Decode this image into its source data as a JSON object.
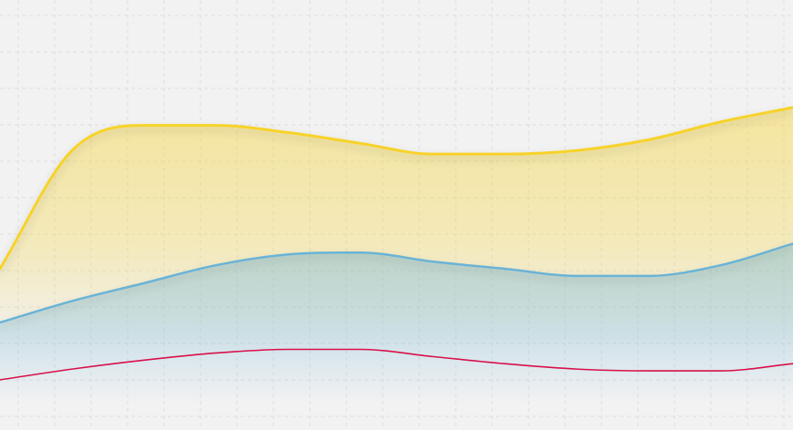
{
  "chart_data": {
    "type": "area",
    "title": "",
    "xlabel": "",
    "ylabel": "",
    "grid": true,
    "legend": "none",
    "xlim": [
      0,
      11
    ],
    "ylim": [
      0,
      12
    ],
    "x": [
      0,
      1,
      2,
      3,
      4,
      5,
      6,
      7,
      8,
      9,
      10,
      11
    ],
    "series": [
      {
        "color": "#f7d22a",
        "fill": true,
        "values": [
          4.5,
          7.8,
          8.5,
          8.5,
          8.3,
          8.0,
          7.7,
          7.7,
          7.8,
          8.1,
          8.6,
          9.0
        ]
      },
      {
        "color": "#6bb3d6",
        "fill": true,
        "values": [
          3.0,
          3.6,
          4.1,
          4.6,
          4.9,
          4.95,
          4.7,
          4.5,
          4.3,
          4.3,
          4.6,
          5.2
        ]
      },
      {
        "color": "#d8104a",
        "fill": false,
        "values": [
          1.4,
          1.7,
          1.95,
          2.15,
          2.25,
          2.25,
          2.05,
          1.85,
          1.7,
          1.65,
          1.65,
          1.85
        ]
      }
    ]
  }
}
